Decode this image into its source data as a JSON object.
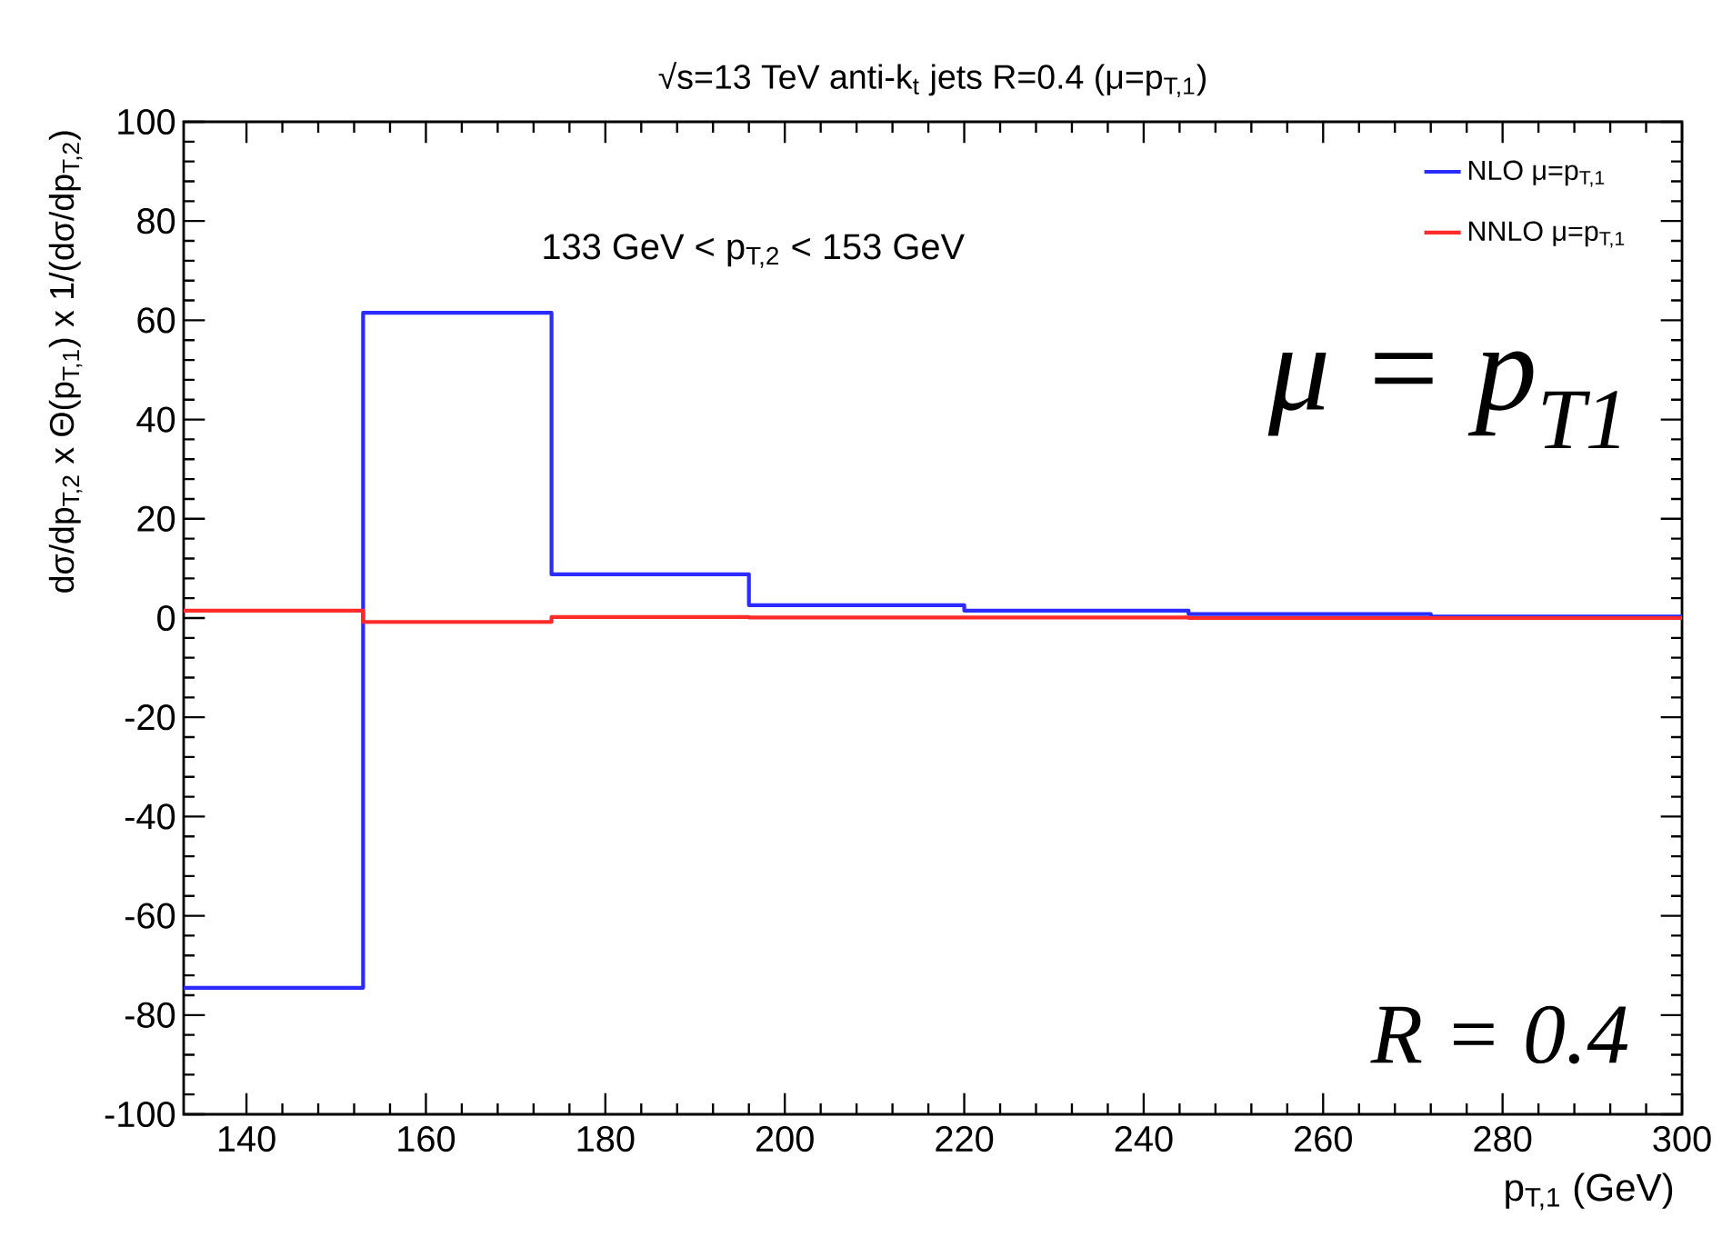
{
  "chart_data": {
    "type": "histogram",
    "title": "√s=13 TeV anti-k$_{t}$ jets R=0.4 (μ=p$_{T,1}$)",
    "xlabel": "p$_{T,1}$ (GeV)",
    "ylabel": "dσ/dp$_{T,2}$ x Θ(p$_{T,1}$) x 1/(dσ/dp$_{T,2}$)",
    "bins": [
      133,
      153,
      174,
      196,
      220,
      245,
      272,
      300
    ],
    "series": [
      {
        "name": "NLO  μ=p$_{T,1}$",
        "color": "#2b2bff",
        "values": [
          -74.5,
          61.5,
          8.8,
          2.6,
          1.5,
          0.8,
          0.3
        ]
      },
      {
        "name": "NNLO  μ=p$_{T,1}$",
        "color": "#ff2a2a",
        "values": [
          1.5,
          -0.8,
          0.2,
          0.1,
          0.1,
          0,
          0
        ]
      }
    ],
    "xlim": [
      133,
      300
    ],
    "xticks": [
      140,
      160,
      180,
      200,
      220,
      240,
      260,
      280,
      300
    ],
    "ylim": [
      -100,
      100
    ],
    "yticks": [
      -100,
      -80,
      -60,
      -40,
      -20,
      0,
      20,
      40,
      60,
      80,
      100
    ],
    "grid": false,
    "legend": "top right",
    "marker": "none",
    "line_style": "solid",
    "annotations": [
      "133 GeV < p$_{T,2}$ < 153 GeV",
      "μ = p$_{T1}$",
      "R = 0.4"
    ]
  }
}
